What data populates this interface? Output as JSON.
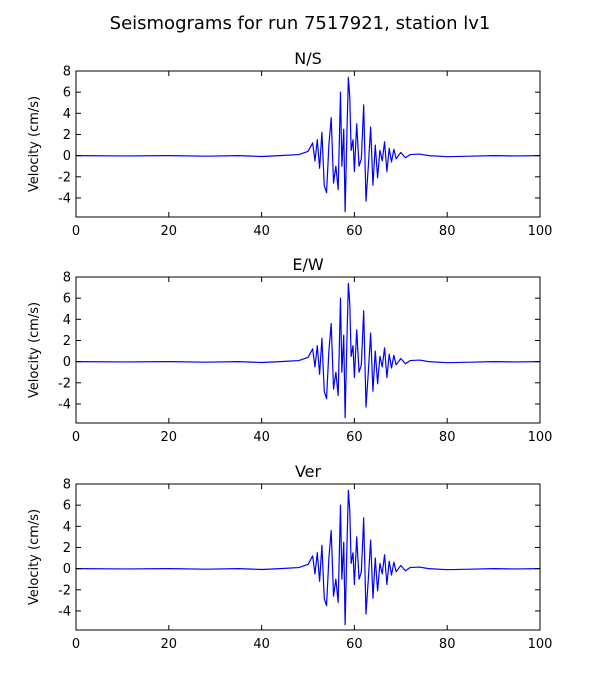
{
  "figure": {
    "suptitle": "Seismograms for run 7517921, station lv1",
    "line_color": "#0000ff"
  },
  "chart_data": [
    {
      "type": "line",
      "title": "N/S",
      "ylabel": "Velocity (cm/s)",
      "xlabel": "",
      "xlim": [
        0,
        100
      ],
      "ylim": [
        -5.8,
        8
      ],
      "xticks": [
        0,
        20,
        40,
        60,
        80,
        100
      ],
      "yticks": [
        -4,
        -2,
        0,
        2,
        4,
        6,
        8
      ],
      "grid": false,
      "points": [
        [
          0,
          0
        ],
        [
          10,
          -0.03
        ],
        [
          20,
          0
        ],
        [
          28,
          -0.05
        ],
        [
          35,
          0
        ],
        [
          40,
          -0.08
        ],
        [
          44,
          0
        ],
        [
          48,
          0.1
        ],
        [
          50,
          0.4
        ],
        [
          51,
          1.2
        ],
        [
          51.5,
          -0.5
        ],
        [
          52,
          1.5
        ],
        [
          52.5,
          -1.2
        ],
        [
          53,
          2.2
        ],
        [
          53.5,
          -2.8
        ],
        [
          54,
          -3.5
        ],
        [
          54.5,
          1
        ],
        [
          55,
          3.6
        ],
        [
          55.5,
          -2.6
        ],
        [
          56,
          -1
        ],
        [
          56.5,
          -3.2
        ],
        [
          57,
          6
        ],
        [
          57.3,
          -1
        ],
        [
          57.7,
          2.5
        ],
        [
          58,
          -5.3
        ],
        [
          58.3,
          0.5
        ],
        [
          58.7,
          7.4
        ],
        [
          59,
          5.5
        ],
        [
          59.3,
          0.5
        ],
        [
          59.7,
          1.5
        ],
        [
          60,
          -1.5
        ],
        [
          60.5,
          3
        ],
        [
          61,
          -1
        ],
        [
          61.5,
          -0.3
        ],
        [
          62,
          4.8
        ],
        [
          62.5,
          -4.3
        ],
        [
          63,
          -1
        ],
        [
          63.5,
          2.7
        ],
        [
          64,
          -2.8
        ],
        [
          64.5,
          1
        ],
        [
          65,
          -2.1
        ],
        [
          65.5,
          0.5
        ],
        [
          66,
          -0.5
        ],
        [
          66.5,
          1.3
        ],
        [
          67,
          -1.5
        ],
        [
          67.5,
          0.7
        ],
        [
          68,
          -0.6
        ],
        [
          68.5,
          0.6
        ],
        [
          69,
          -0.3
        ],
        [
          70,
          0.3
        ],
        [
          71,
          -0.2
        ],
        [
          72,
          0.1
        ],
        [
          74,
          0.15
        ],
        [
          76,
          0
        ],
        [
          80,
          -0.1
        ],
        [
          85,
          -0.05
        ],
        [
          90,
          0
        ],
        [
          95,
          -0.03
        ],
        [
          100,
          0
        ]
      ]
    },
    {
      "type": "line",
      "title": "E/W",
      "ylabel": "Velocity (cm/s)",
      "xlabel": "",
      "xlim": [
        0,
        100
      ],
      "ylim": [
        -5.8,
        8
      ],
      "xticks": [
        0,
        20,
        40,
        60,
        80,
        100
      ],
      "yticks": [
        -4,
        -2,
        0,
        2,
        4,
        6,
        8
      ],
      "grid": false,
      "points": [
        [
          0,
          0
        ],
        [
          10,
          -0.03
        ],
        [
          20,
          0
        ],
        [
          28,
          -0.05
        ],
        [
          35,
          0
        ],
        [
          40,
          -0.08
        ],
        [
          44,
          0
        ],
        [
          48,
          0.1
        ],
        [
          50,
          0.4
        ],
        [
          51,
          1.2
        ],
        [
          51.5,
          -0.5
        ],
        [
          52,
          1.5
        ],
        [
          52.5,
          -1.2
        ],
        [
          53,
          2.2
        ],
        [
          53.5,
          -2.8
        ],
        [
          54,
          -3.5
        ],
        [
          54.5,
          1
        ],
        [
          55,
          3.6
        ],
        [
          55.5,
          -2.6
        ],
        [
          56,
          -1
        ],
        [
          56.5,
          -3.2
        ],
        [
          57,
          6
        ],
        [
          57.3,
          -1
        ],
        [
          57.7,
          2.5
        ],
        [
          58,
          -5.3
        ],
        [
          58.3,
          0.5
        ],
        [
          58.7,
          7.4
        ],
        [
          59,
          5.5
        ],
        [
          59.3,
          0.5
        ],
        [
          59.7,
          1.5
        ],
        [
          60,
          -1.5
        ],
        [
          60.5,
          3
        ],
        [
          61,
          -1
        ],
        [
          61.5,
          -0.3
        ],
        [
          62,
          4.8
        ],
        [
          62.5,
          -4.3
        ],
        [
          63,
          -1
        ],
        [
          63.5,
          2.7
        ],
        [
          64,
          -2.8
        ],
        [
          64.5,
          1
        ],
        [
          65,
          -2.1
        ],
        [
          65.5,
          0.5
        ],
        [
          66,
          -0.5
        ],
        [
          66.5,
          1.3
        ],
        [
          67,
          -1.5
        ],
        [
          67.5,
          0.7
        ],
        [
          68,
          -0.6
        ],
        [
          68.5,
          0.6
        ],
        [
          69,
          -0.3
        ],
        [
          70,
          0.3
        ],
        [
          71,
          -0.2
        ],
        [
          72,
          0.1
        ],
        [
          74,
          0.15
        ],
        [
          76,
          0
        ],
        [
          80,
          -0.1
        ],
        [
          85,
          -0.05
        ],
        [
          90,
          0
        ],
        [
          95,
          -0.03
        ],
        [
          100,
          0
        ]
      ]
    },
    {
      "type": "line",
      "title": "Ver",
      "ylabel": "Velocity (cm/s)",
      "xlabel": "",
      "xlim": [
        0,
        100
      ],
      "ylim": [
        -5.8,
        8
      ],
      "xticks": [
        0,
        20,
        40,
        60,
        80,
        100
      ],
      "yticks": [
        -4,
        -2,
        0,
        2,
        4,
        6,
        8
      ],
      "grid": false,
      "points": [
        [
          0,
          0
        ],
        [
          10,
          -0.03
        ],
        [
          20,
          0
        ],
        [
          28,
          -0.05
        ],
        [
          35,
          0
        ],
        [
          40,
          -0.08
        ],
        [
          44,
          0
        ],
        [
          48,
          0.1
        ],
        [
          50,
          0.4
        ],
        [
          51,
          1.2
        ],
        [
          51.5,
          -0.5
        ],
        [
          52,
          1.5
        ],
        [
          52.5,
          -1.2
        ],
        [
          53,
          2.2
        ],
        [
          53.5,
          -2.8
        ],
        [
          54,
          -3.5
        ],
        [
          54.5,
          1
        ],
        [
          55,
          3.6
        ],
        [
          55.5,
          -2.6
        ],
        [
          56,
          -1
        ],
        [
          56.5,
          -3.2
        ],
        [
          57,
          6
        ],
        [
          57.3,
          -1
        ],
        [
          57.7,
          2.5
        ],
        [
          58,
          -5.3
        ],
        [
          58.3,
          0.5
        ],
        [
          58.7,
          7.4
        ],
        [
          59,
          5.5
        ],
        [
          59.3,
          0.5
        ],
        [
          59.7,
          1.5
        ],
        [
          60,
          -1.5
        ],
        [
          60.5,
          3
        ],
        [
          61,
          -1
        ],
        [
          61.5,
          -0.3
        ],
        [
          62,
          4.8
        ],
        [
          62.5,
          -4.3
        ],
        [
          63,
          -1
        ],
        [
          63.5,
          2.7
        ],
        [
          64,
          -2.8
        ],
        [
          64.5,
          1
        ],
        [
          65,
          -2.1
        ],
        [
          65.5,
          0.5
        ],
        [
          66,
          -0.5
        ],
        [
          66.5,
          1.3
        ],
        [
          67,
          -1.5
        ],
        [
          67.5,
          0.7
        ],
        [
          68,
          -0.6
        ],
        [
          68.5,
          0.6
        ],
        [
          69,
          -0.3
        ],
        [
          70,
          0.3
        ],
        [
          71,
          -0.2
        ],
        [
          72,
          0.1
        ],
        [
          74,
          0.15
        ],
        [
          76,
          0
        ],
        [
          80,
          -0.1
        ],
        [
          85,
          -0.05
        ],
        [
          90,
          0
        ],
        [
          95,
          -0.03
        ],
        [
          100,
          0
        ]
      ]
    }
  ]
}
